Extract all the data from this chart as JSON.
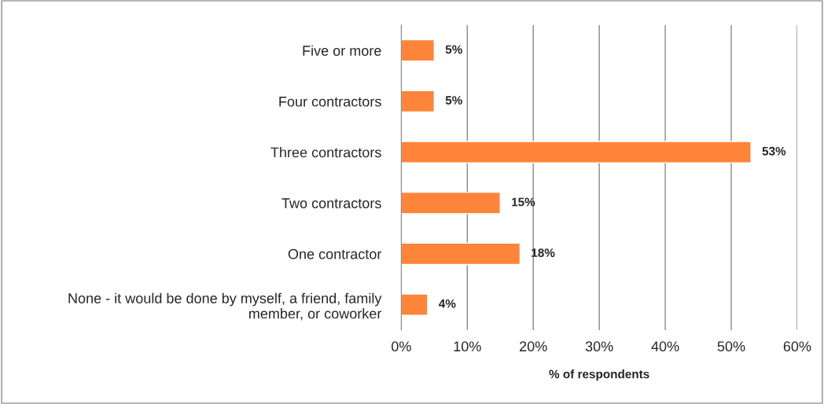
{
  "chart_data": {
    "type": "bar",
    "orientation": "horizontal",
    "xlabel": "% of respondents",
    "categories": [
      "Five or more",
      "Four contractors",
      "Three contractors",
      "Two contractors",
      "One contractor",
      "None - it would be done by myself, a friend, family\nmember, or coworker"
    ],
    "values": [
      5,
      5,
      53,
      15,
      18,
      4
    ],
    "color": "#fe8439",
    "data_labels": true,
    "value_labels": [
      "5%",
      "5%",
      "53%",
      "15%",
      "18%",
      "4%"
    ],
    "xlim": [
      0,
      60
    ],
    "xticks": [
      {
        "value": 0,
        "label": "0%"
      },
      {
        "value": 10,
        "label": "10%"
      },
      {
        "value": 20,
        "label": "20%"
      },
      {
        "value": 30,
        "label": "30%"
      },
      {
        "value": 40,
        "label": "40%"
      },
      {
        "value": 50,
        "label": "50%"
      },
      {
        "value": 60,
        "label": "60%"
      }
    ],
    "grid": "x",
    "legend": false
  }
}
